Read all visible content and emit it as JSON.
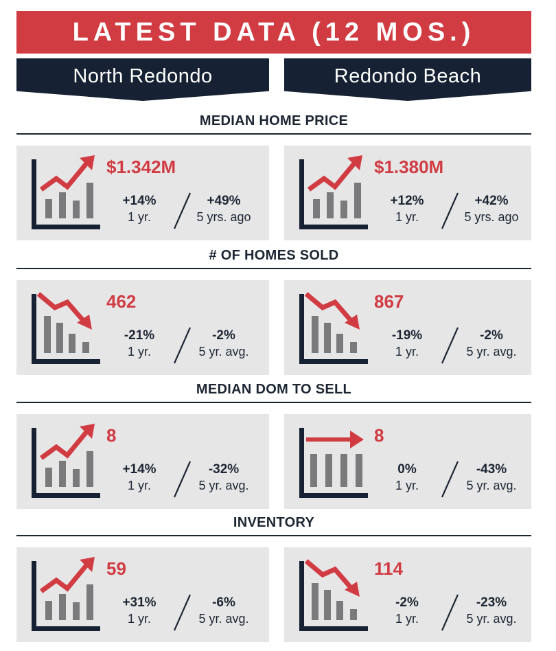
{
  "banner": "LATEST DATA (12 MOS.)",
  "columns": {
    "left": "North Redondo",
    "right": "Redondo Beach"
  },
  "colors": {
    "accent": "#d13c43",
    "navy": "#162233",
    "card": "#e6e6e7"
  },
  "sections": [
    {
      "title": "MEDIAN HOME PRICE",
      "cards": [
        {
          "icon": "trend-up-chart-icon",
          "value": "$1.342M",
          "stat1_pct": "+14%",
          "stat1_label": "1 yr.",
          "stat2_pct": "+49%",
          "stat2_label": "5 yrs. ago"
        },
        {
          "icon": "trend-up-chart-icon",
          "value": "$1.380M",
          "stat1_pct": "+12%",
          "stat1_label": "1 yr.",
          "stat2_pct": "+42%",
          "stat2_label": "5 yrs. ago"
        }
      ]
    },
    {
      "title": "# OF HOMES SOLD",
      "cards": [
        {
          "icon": "trend-down-chart-icon",
          "value": "462",
          "stat1_pct": "-21%",
          "stat1_label": "1 yr.",
          "stat2_pct": "-2%",
          "stat2_label": "5 yr. avg."
        },
        {
          "icon": "trend-down-chart-icon",
          "value": "867",
          "stat1_pct": "-19%",
          "stat1_label": "1 yr.",
          "stat2_pct": "-2%",
          "stat2_label": "5 yr. avg."
        }
      ]
    },
    {
      "title": "MEDIAN DOM TO SELL",
      "cards": [
        {
          "icon": "trend-up-chart-icon",
          "value": "8",
          "stat1_pct": "+14%",
          "stat1_label": "1 yr.",
          "stat2_pct": "-32%",
          "stat2_label": "5 yr. avg."
        },
        {
          "icon": "trend-flat-chart-icon",
          "value": "8",
          "stat1_pct": "0%",
          "stat1_label": "1 yr.",
          "stat2_pct": "-43%",
          "stat2_label": "5 yr. avg."
        }
      ]
    },
    {
      "title": "INVENTORY",
      "cards": [
        {
          "icon": "trend-up-chart-icon",
          "value": "59",
          "stat1_pct": "+31%",
          "stat1_label": "1 yr.",
          "stat2_pct": "-6%",
          "stat2_label": "5 yr. avg."
        },
        {
          "icon": "trend-down-chart-icon",
          "value": "114",
          "stat1_pct": "-2%",
          "stat1_label": "1 yr.",
          "stat2_pct": "-23%",
          "stat2_label": "5 yr. avg."
        }
      ]
    }
  ]
}
